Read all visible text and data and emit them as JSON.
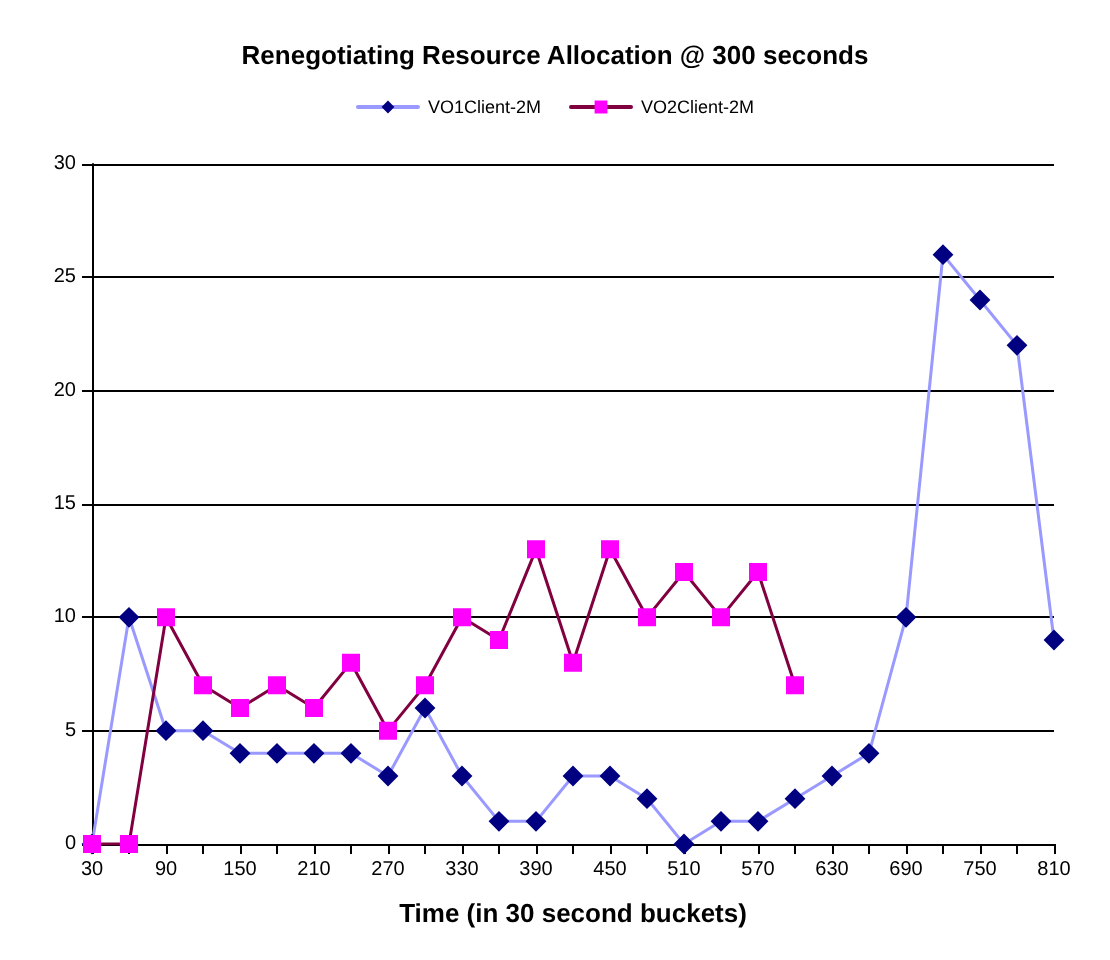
{
  "chart_data": {
    "type": "line",
    "title": "Renegotiating Resource Allocation @ 300 seconds",
    "xlabel": "Time (in 30 second buckets)",
    "categories": [
      "30",
      null,
      "90",
      null,
      "150",
      null,
      "210",
      null,
      "270",
      null,
      "330",
      null,
      "390",
      null,
      "450",
      null,
      "510",
      null,
      "570",
      null,
      "630",
      null,
      "690",
      null,
      "750",
      null,
      "810"
    ],
    "series": [
      {
        "name": "VO1Client-2M",
        "color": "#9999ff",
        "marker": "diamond",
        "colors": [
          "#000080",
          "#000080",
          "#000080",
          "#000080",
          "#000080",
          "#000080",
          "#000080",
          "#000080",
          "#000080",
          "#000080",
          "#000080",
          "#000080",
          "#000080",
          "#000080",
          "#000080",
          "#000080",
          "#000080",
          "#000080",
          "#000080",
          "#000080",
          "#000080",
          "#000080",
          "#000080",
          "#000080",
          "#000080",
          "#000080",
          "#000080"
        ],
        "values": [
          0,
          10,
          5,
          5,
          4,
          4,
          4,
          4,
          3,
          6,
          3,
          1,
          1,
          3,
          3,
          2,
          0,
          1,
          1,
          2,
          3,
          4,
          10,
          26,
          24,
          22,
          9
        ]
      },
      {
        "name": "VO2Client-2M",
        "color": "#800040",
        "marker": "square",
        "colors": [
          "#ff00ff",
          "#ff00ff",
          "#ff00ff",
          "#ff00ff",
          "#ff00ff",
          "#ff00ff",
          "#ff00ff",
          "#ff00ff",
          "#ff00ff",
          "#ff00ff",
          "#ff00ff",
          "#ff00ff",
          "#ff00ff",
          "#ff00ff",
          "#ff00ff",
          "#ff00ff",
          "#ff00ff",
          "#ff00ff",
          "#ff00ff",
          "#ff00ff",
          "#ff00ff",
          "#ff00ff",
          "#ff00ff",
          "#ff00ff",
          "#ff00ff",
          "#ff00ff",
          "#ff00ff"
        ],
        "values": [
          0,
          0,
          10,
          7,
          6,
          7,
          6,
          8,
          5,
          7,
          10,
          9,
          13,
          8,
          13,
          10,
          12,
          10,
          12,
          7,
          null,
          null,
          null,
          null,
          null,
          null,
          null
        ]
      }
    ],
    "ylim": [
      0,
      30
    ],
    "yticks": [
      0,
      5,
      10,
      15,
      20,
      25,
      30
    ],
    "grid": "y",
    "legend": "top"
  }
}
